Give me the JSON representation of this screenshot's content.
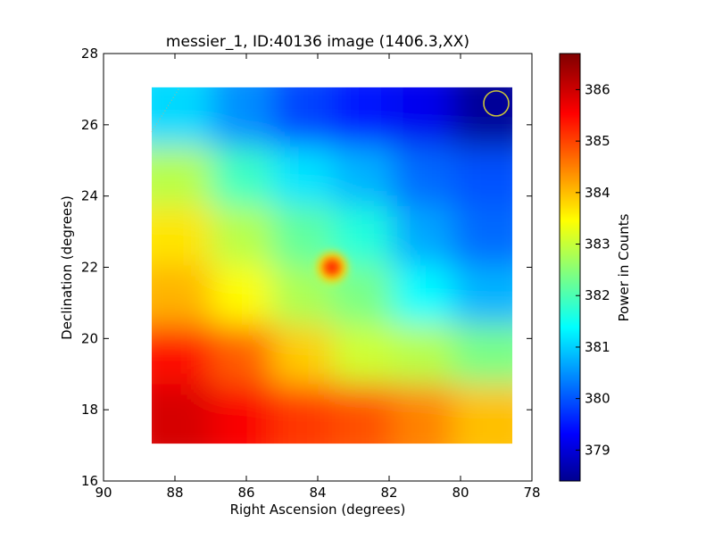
{
  "chart_data": {
    "type": "heatmap",
    "title": "messier_1, ID:40136 image (1406.3,XX)",
    "xlabel": "Right Ascension (degrees)",
    "ylabel": "Declination (degrees)",
    "xlim": [
      90,
      78
    ],
    "ylim": [
      16,
      28
    ],
    "x_ticks": [
      90,
      88,
      86,
      84,
      82,
      80,
      78
    ],
    "y_ticks": [
      16,
      18,
      20,
      22,
      24,
      26,
      28
    ],
    "x_tick_labels": [
      "90",
      "88",
      "86",
      "84",
      "82",
      "80",
      "78"
    ],
    "y_tick_labels": [
      "16",
      "18",
      "20",
      "22",
      "24",
      "26",
      "28"
    ],
    "image_extent": {
      "ra": [
        88.65,
        78.55
      ],
      "dec": [
        17.05,
        27.05
      ]
    },
    "colormap": "jet",
    "colorbar": {
      "label": "Power in Counts",
      "range": [
        378.4,
        386.7
      ],
      "ticks": [
        379,
        380,
        381,
        382,
        383,
        384,
        385,
        386
      ],
      "tick_labels": [
        "379",
        "380",
        "381",
        "382",
        "383",
        "384",
        "385",
        "386"
      ]
    },
    "grid": false,
    "features": {
      "hot_spot": {
        "ra": 83.6,
        "dec": 22.0,
        "value": 385.3
      },
      "beam_circle": {
        "ra": 79.0,
        "dec": 26.6,
        "radius_deg": 0.35,
        "color": "#c8c23a"
      }
    },
    "grid_ra": [
      88.5,
      86.5,
      84.5,
      82.5,
      80.5,
      78.6
    ],
    "grid_dec": [
      27,
      25,
      23,
      21,
      19,
      17
    ],
    "values": [
      [
        381.2,
        380.6,
        380.0,
        379.6,
        379.3,
        378.6
      ],
      [
        383.0,
        382.0,
        381.3,
        380.9,
        380.3,
        380.1
      ],
      [
        383.8,
        383.0,
        382.3,
        381.8,
        380.8,
        380.3
      ],
      [
        384.2,
        383.6,
        382.9,
        382.5,
        381.5,
        380.9
      ],
      [
        385.6,
        384.9,
        384.0,
        383.2,
        383.0,
        382.5
      ],
      [
        386.0,
        385.7,
        385.2,
        385.0,
        384.6,
        384.1
      ]
    ]
  }
}
